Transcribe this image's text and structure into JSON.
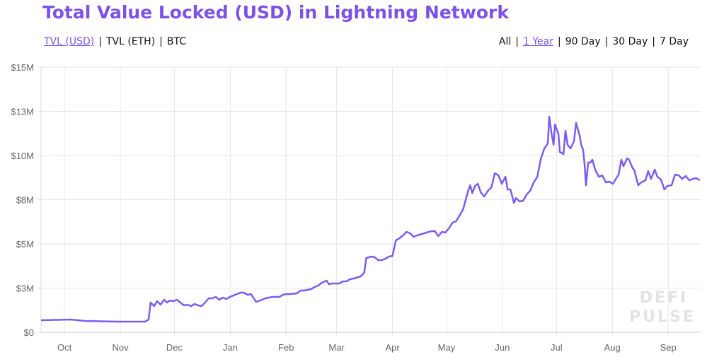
{
  "chart_data": {
    "type": "line",
    "title": "Total Value Locked (USD) in Lightning Network",
    "xlabel": "",
    "ylabel": "",
    "x_unit": "days since Oct 1",
    "xlim": [
      -13,
      353
    ],
    "ylim": [
      0,
      15
    ],
    "grid": true,
    "legend": "none",
    "y_ticks": [
      0,
      2.5,
      5,
      7.5,
      10,
      12.5,
      15
    ],
    "y_tick_labels": [
      "$0",
      "$3M",
      "$5M",
      "$8M",
      "$10M",
      "$13M",
      "$15M"
    ],
    "x_ticks": [
      0,
      31,
      61,
      92,
      123,
      151,
      182,
      212,
      243,
      273,
      304,
      335
    ],
    "x_tick_labels": [
      "Oct",
      "Nov",
      "Dec",
      "Jan",
      "Feb",
      "Mar",
      "Apr",
      "May",
      "Jun",
      "Jul",
      "Aug",
      "Sep"
    ],
    "series": [
      {
        "name": "TVL (USD, millions)",
        "color": "#7b5cf0",
        "x": [
          -13,
          3.5,
          11.4,
          29,
          44.7,
          46.7,
          47.8,
          49.8,
          51.4,
          53.3,
          55.3,
          56.9,
          58.4,
          60.4,
          62.4,
          64.3,
          66.3,
          68.2,
          70.2,
          72.2,
          74.1,
          76.1,
          78,
          80,
          82,
          83.9,
          85.9,
          87.8,
          89.8,
          91.8,
          93.7,
          97.6,
          99.6,
          101.6,
          103.5,
          106.3,
          108.6,
          111.4,
          115.3,
          119.2,
          121.2,
          123.1,
          125.1,
          129,
          131,
          132.9,
          136.9,
          138.8,
          140.8,
          142.7,
          145.5,
          146.7,
          148.6,
          152.5,
          154.5,
          156.5,
          158.4,
          160.4,
          164.3,
          166.3,
          167.5,
          170.2,
          172.2,
          174.1,
          176.1,
          178,
          180,
          182,
          183.9,
          185.9,
          187.8,
          189.8,
          191.8,
          193.7,
          195.7,
          199.6,
          203.5,
          205.5,
          207.5,
          209.4,
          211.4,
          213.3,
          215.3,
          217.3,
          219.2,
          221.2,
          222.4,
          224,
          225.1,
          226.3,
          227.8,
          229.4,
          231,
          232.9,
          234.9,
          236.9,
          238.8,
          240.8,
          242.7,
          244.7,
          245.9,
          247.5,
          249.4,
          250.6,
          252.5,
          254.5,
          256.5,
          258.4,
          260.4,
          262.4,
          264.3,
          266.3,
          268.2,
          269,
          270.2,
          271.4,
          272.2,
          274.1,
          274.9,
          276.9,
          278,
          279.2,
          280.8,
          282.7,
          283.9,
          285.9,
          286.7,
          287.8,
          288.6,
          289.4,
          290.6,
          291.8,
          292.9,
          294.5,
          296.5,
          298.4,
          300.4,
          302.4,
          304.3,
          305.5,
          307.5,
          309,
          310.2,
          312.2,
          313.3,
          315.3,
          316.1,
          318.4,
          320,
          322.4,
          323.9,
          325.5,
          327.5,
          329,
          331,
          332.9,
          334.5,
          336.9,
          338.8,
          340.8,
          342.7,
          344.7,
          346.7,
          348.6,
          350.6,
          352.5
        ],
        "values": [
          0.68,
          0.72,
          0.64,
          0.6,
          0.6,
          0.72,
          1.68,
          1.48,
          1.76,
          1.56,
          1.84,
          1.68,
          1.8,
          1.76,
          1.84,
          1.68,
          1.52,
          1.56,
          1.48,
          1.6,
          1.52,
          1.48,
          1.68,
          1.92,
          1.92,
          2.0,
          1.84,
          1.96,
          1.88,
          2.0,
          2.08,
          2.24,
          2.24,
          2.12,
          2.16,
          1.72,
          1.8,
          1.92,
          2.0,
          2.0,
          2.12,
          2.16,
          2.16,
          2.2,
          2.36,
          2.36,
          2.44,
          2.56,
          2.64,
          2.8,
          2.92,
          2.72,
          2.76,
          2.76,
          2.88,
          2.88,
          3.0,
          3.04,
          3.16,
          3.36,
          4.2,
          4.28,
          4.24,
          4.08,
          4.08,
          4.16,
          4.28,
          4.32,
          5.2,
          5.32,
          5.48,
          5.68,
          5.6,
          5.4,
          5.48,
          5.6,
          5.72,
          5.72,
          5.44,
          5.68,
          5.64,
          5.88,
          6.2,
          6.28,
          6.6,
          6.96,
          7.4,
          8.0,
          8.32,
          7.88,
          8.28,
          8.4,
          7.92,
          7.68,
          8.0,
          8.2,
          9.0,
          8.88,
          8.4,
          8.8,
          8.08,
          8.08,
          7.32,
          7.6,
          7.4,
          7.44,
          7.8,
          8.0,
          8.48,
          8.8,
          9.8,
          10.4,
          10.68,
          12.2,
          11.28,
          10.6,
          11.76,
          11.2,
          10.2,
          10.08,
          11.4,
          10.6,
          10.4,
          10.8,
          11.84,
          11.12,
          10.6,
          10.32,
          9.52,
          8.32,
          9.6,
          9.6,
          9.76,
          9.2,
          8.8,
          8.88,
          8.48,
          8.52,
          8.4,
          8.6,
          8.92,
          9.76,
          9.4,
          9.84,
          9.76,
          9.28,
          9.2,
          8.32,
          8.48,
          8.6,
          9.12,
          8.68,
          9.2,
          8.8,
          8.64,
          8.08,
          8.28,
          8.32,
          8.92,
          8.88,
          8.68,
          8.84,
          8.6,
          8.68,
          8.72,
          8.6
        ]
      }
    ]
  },
  "currency_tabs": [
    {
      "label": "TVL (USD)",
      "active": true
    },
    {
      "label": "TVL (ETH)",
      "active": false
    },
    {
      "label": "BTC",
      "active": false
    }
  ],
  "range_tabs": [
    {
      "label": "All",
      "active": false
    },
    {
      "label": "1 Year",
      "active": true
    },
    {
      "label": "90 Day",
      "active": false
    },
    {
      "label": "30 Day",
      "active": false
    },
    {
      "label": "7 Day",
      "active": false
    }
  ],
  "separator": "|",
  "watermark": [
    "DEFI",
    "PULSE"
  ]
}
